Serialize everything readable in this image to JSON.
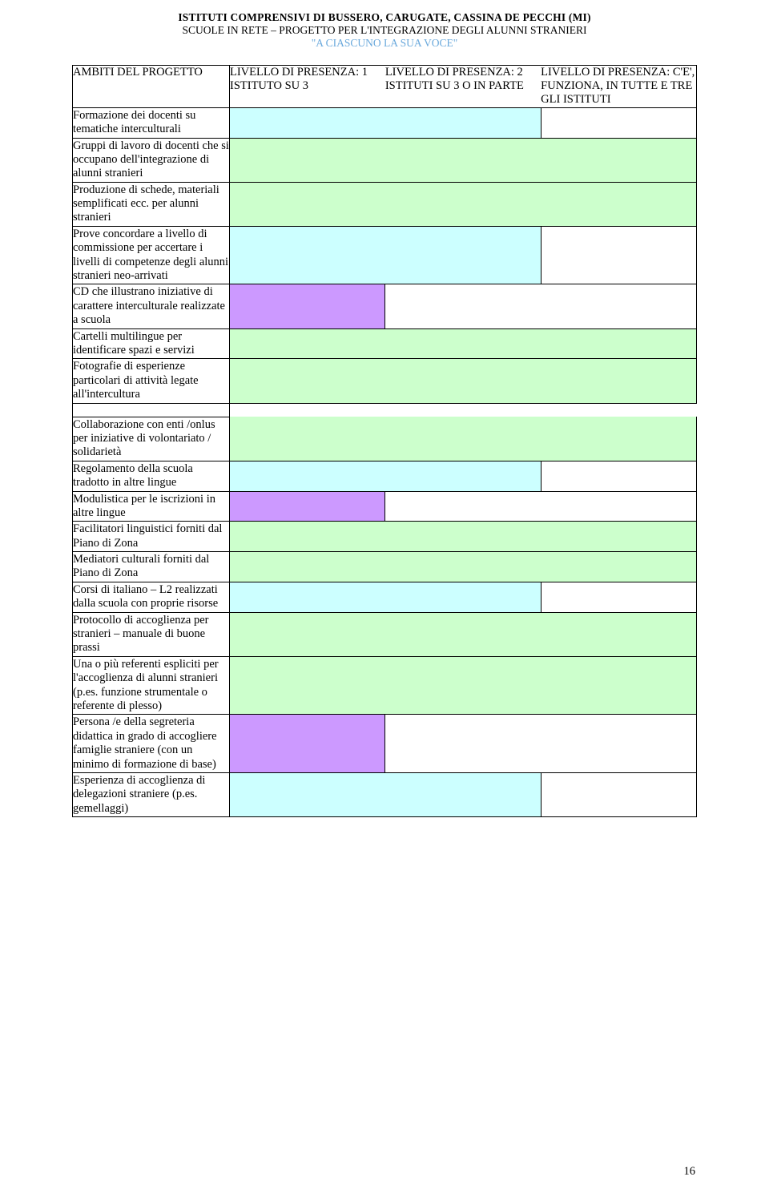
{
  "header": {
    "line1": "ISTITUTI COMPRENSIVI DI BUSSERO, CARUGATE, CASSINA DE PECCHI (MI)",
    "line2": "SCUOLE IN RETE – PROGETTO PER L'INTEGRAZIONE DEGLI ALUNNI STRANIERI",
    "line3": "\"A CIASCUNO LA SUA VOCE\""
  },
  "colors": {
    "green": "#ccffcc",
    "purple": "#cc99ff",
    "lightCyan": "#ccffff",
    "accent_header_blue": "#6aa9dc"
  },
  "columns": {
    "ambiti_label": "AMBITI DEL PROGETTO",
    "level1": "LIVELLO DI PRESENZA: 1 ISTITUTO SU 3",
    "level2": "LIVELLO DI PRESENZA: 2 ISTITUTI SU 3 O IN PARTE",
    "level3": "LIVELLO DI PRESENZA: C'E', FUNZIONA, IN TUTTE E TRE GLI ISTITUTI"
  },
  "rows": [
    {
      "label": "Formazione dei docenti su tematiche interculturali",
      "fill": "lightCyan",
      "span": 2
    },
    {
      "label": "Gruppi di lavoro di docenti che si occupano dell'integrazione di alunni stranieri",
      "fill": "green",
      "span": 3
    },
    {
      "label": "Produzione di schede, materiali semplificati ecc. per alunni stranieri",
      "fill": "green",
      "span": 3
    },
    {
      "label": "Prove concordare a livello di commissione per accertare i livelli di competenze degli alunni stranieri neo-arrivati",
      "fill": "lightCyan",
      "span": 2
    },
    {
      "label": "CD che illustrano iniziative di carattere interculturale realizzate a scuola",
      "fill": "purple",
      "span": 1
    },
    {
      "label": "Cartelli multilingue per identificare spazi e servizi",
      "fill": "green",
      "span": 3
    },
    {
      "label": "Fotografie di esperienze particolari di attività legate all'intercultura",
      "fill": "green",
      "span": 3
    },
    {
      "spacer": true
    },
    {
      "label": "Collaborazione con enti /onlus per iniziative di volontariato / solidarietà",
      "fill": "green",
      "span": 3
    },
    {
      "label": "Regolamento della scuola tradotto in altre lingue",
      "fill": "lightCyan",
      "span": 2
    },
    {
      "label": "Modulistica per le iscrizioni in altre lingue",
      "fill": "purple",
      "span": 1
    },
    {
      "label": "Facilitatori linguistici forniti dal Piano di Zona",
      "fill": "green",
      "span": 3
    },
    {
      "label": "Mediatori culturali forniti dal Piano di Zona",
      "fill": "green",
      "span": 3
    },
    {
      "label": "Corsi di italiano – L2 realizzati dalla scuola con proprie risorse",
      "fill": "lightCyan",
      "span": 2
    },
    {
      "label": "Protocollo di accoglienza per stranieri – manuale di buone prassi",
      "fill": "green",
      "span": 3
    },
    {
      "label": "Una o più referenti espliciti per l'accoglienza di alunni stranieri (p.es. funzione strumentale o referente di plesso)",
      "fill": "green",
      "span": 3
    },
    {
      "label": "Persona /e della segreteria didattica in grado di accogliere famiglie straniere (con un minimo di formazione di base)",
      "fill": "purple",
      "span": 1
    },
    {
      "label": "Esperienza di accoglienza di delegazioni straniere (p.es. gemellaggi)",
      "fill": "lightCyan",
      "span": 2
    }
  ],
  "page_number": "16"
}
